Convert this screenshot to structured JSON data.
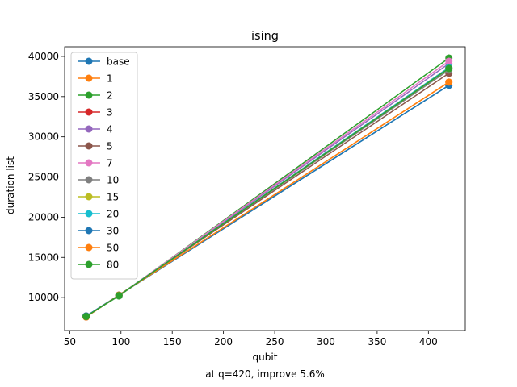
{
  "chart_data": {
    "type": "line",
    "title": "ising",
    "xlabel": "qubit",
    "ylabel": "duration list",
    "caption": "at q=420, improve 5.6%",
    "x": [
      66,
      98,
      420
    ],
    "xlim": [
      45,
      436
    ],
    "ylim": [
      5900,
      41200
    ],
    "xticks": [
      50,
      100,
      150,
      200,
      250,
      300,
      350,
      400
    ],
    "yticks": [
      10000,
      15000,
      20000,
      25000,
      30000,
      35000,
      40000
    ],
    "grid": false,
    "legend_position": "upper-left",
    "series": [
      {
        "name": "base",
        "color": "#1f77b4",
        "values": [
          7700,
          10300,
          36400
        ]
      },
      {
        "name": "1",
        "color": "#ff7f0e",
        "values": [
          7600,
          10300,
          36800
        ]
      },
      {
        "name": "2",
        "color": "#2ca02c",
        "values": [
          7700,
          10200,
          39800
        ]
      },
      {
        "name": "3",
        "color": "#d62728",
        "values": [
          7650,
          10250,
          38600
        ]
      },
      {
        "name": "4",
        "color": "#9467bd",
        "values": [
          7650,
          10250,
          39100
        ]
      },
      {
        "name": "5",
        "color": "#8c564b",
        "values": [
          7600,
          10300,
          37900
        ]
      },
      {
        "name": "7",
        "color": "#e377c2",
        "values": [
          7700,
          10250,
          39400
        ]
      },
      {
        "name": "10",
        "color": "#7f7f7f",
        "values": [
          7650,
          10300,
          38300
        ]
      },
      {
        "name": "15",
        "color": "#bcbd22",
        "values": [
          7650,
          10250,
          38500
        ]
      },
      {
        "name": "20",
        "color": "#17becf",
        "values": [
          7650,
          10250,
          38600
        ]
      },
      {
        "name": "30",
        "color": "#1f77b4",
        "values": [
          7700,
          10300,
          36400
        ]
      },
      {
        "name": "50",
        "color": "#ff7f0e",
        "values": [
          7600,
          10300,
          36800
        ]
      },
      {
        "name": "80",
        "color": "#2ca02c",
        "values": [
          7650,
          10250,
          38500
        ]
      }
    ]
  }
}
